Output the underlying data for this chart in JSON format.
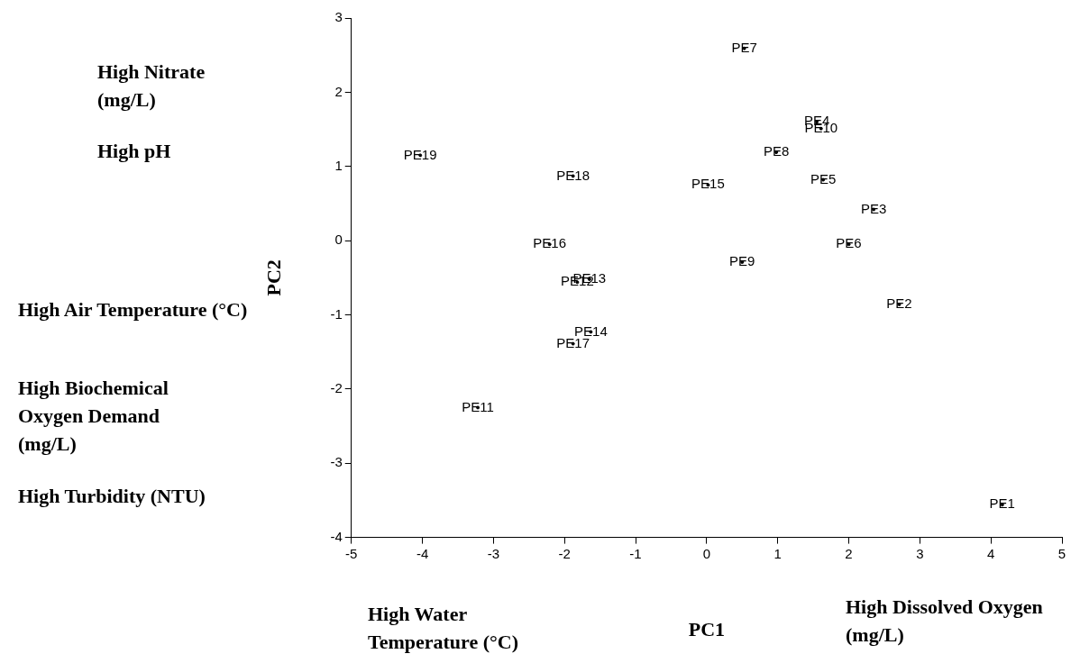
{
  "chart_data": {
    "type": "scatter",
    "xlabel": "PC1",
    "ylabel": "PC2",
    "x": [
      0.53,
      1.55,
      1.61,
      0.98,
      -4.03,
      -1.88,
      0.02,
      1.64,
      2.35,
      -2.21,
      2.0,
      0.5,
      -1.82,
      -1.65,
      2.71,
      -1.63,
      -1.88,
      -3.22,
      4.16
    ],
    "values": [
      2.59,
      1.6,
      1.51,
      1.19,
      1.15,
      0.87,
      0.75,
      0.82,
      0.42,
      -0.05,
      -0.05,
      -0.29,
      -0.56,
      -0.52,
      -0.86,
      -1.23,
      -1.39,
      -2.25,
      -3.56
    ],
    "value_labels": [
      "PE7",
      "PE4",
      "PE10",
      "PE8",
      "PE19",
      "PE18",
      "PE15",
      "PE5",
      "PE3",
      "PE16",
      "PE6",
      "PE9",
      "PE12",
      "PE13",
      "PE2",
      "PE14",
      "PE17",
      "PE11",
      "PE1"
    ],
    "color": "#000000",
    "marker": "circle",
    "grid": false,
    "legend": false,
    "xlim": [
      -5,
      5
    ],
    "xticks": [
      -5,
      -4,
      -3,
      -2,
      -1,
      0,
      1,
      2,
      3,
      4,
      5
    ],
    "ylim": [
      -4,
      3
    ],
    "yticks": [
      -4,
      -3,
      -2,
      -1,
      0,
      1,
      2,
      3
    ],
    "annotations": [
      "High Nitrate (mg/L)",
      "High pH",
      "High Air Temperature (°C)",
      "High Biochemical Oxygen Demand (mg/L)",
      "High Turbidity (NTU)",
      "High Water Temperature (°C)",
      "High Dissolved Oxygen (mg/L)"
    ]
  }
}
